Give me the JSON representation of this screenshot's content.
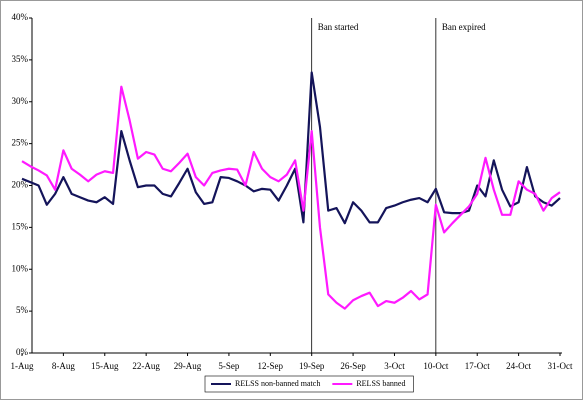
{
  "chart_data": {
    "type": "line",
    "categories": [
      "1-Aug",
      null,
      null,
      null,
      null,
      "8-Aug",
      null,
      null,
      null,
      null,
      "15-Aug",
      null,
      null,
      null,
      null,
      "22-Aug",
      null,
      null,
      null,
      null,
      "29-Aug",
      null,
      null,
      null,
      null,
      "5-Sep",
      null,
      null,
      null,
      null,
      "12-Sep",
      null,
      null,
      null,
      null,
      "19-Sep",
      null,
      null,
      null,
      null,
      "26-Sep",
      null,
      null,
      null,
      null,
      "3-Oct",
      null,
      null,
      null,
      null,
      "10-Oct",
      null,
      null,
      null,
      null,
      "17-Oct",
      null,
      null,
      null,
      null,
      "24-Oct",
      null,
      null,
      null,
      null,
      "31-Oct"
    ],
    "series": [
      {
        "name": "RELSS non-banned match",
        "color": "#14145a",
        "values": [
          20.8,
          20.4,
          20.0,
          17.7,
          19.0,
          21.0,
          19.0,
          18.6,
          18.2,
          18.0,
          18.6,
          17.8,
          26.5,
          23.0,
          19.8,
          20.0,
          20.0,
          19.0,
          18.7,
          20.3,
          22.0,
          19.2,
          17.8,
          18.0,
          21.0,
          20.9,
          20.5,
          20.0,
          19.3,
          19.6,
          19.5,
          18.2,
          20.0,
          22.0,
          15.6,
          33.5,
          27.0,
          17.0,
          17.3,
          15.5,
          18.0,
          17.0,
          15.6,
          15.6,
          17.3,
          17.6,
          18.0,
          18.3,
          18.5,
          18.0,
          19.6,
          16.8,
          16.7,
          16.7,
          17.0,
          20.0,
          18.7,
          23.0,
          19.5,
          17.5,
          18.0,
          22.2,
          18.7,
          18.0,
          17.6,
          18.5
        ]
      },
      {
        "name": "RELSS banned",
        "color": "#ff1aff",
        "values": [
          22.9,
          22.3,
          21.8,
          21.2,
          19.5,
          24.2,
          22.0,
          21.3,
          20.5,
          21.3,
          21.7,
          21.5,
          31.8,
          27.8,
          23.2,
          24.0,
          23.7,
          22.0,
          21.7,
          22.7,
          23.8,
          21.0,
          20.0,
          21.5,
          21.8,
          22.0,
          21.9,
          20.0,
          24.0,
          22.0,
          21.0,
          20.5,
          21.3,
          23.0,
          17.0,
          26.5,
          15.0,
          7.0,
          6.0,
          5.3,
          6.3,
          6.8,
          7.2,
          5.6,
          6.2,
          6.0,
          6.6,
          7.4,
          6.4,
          7.0,
          17.7,
          14.4,
          15.5,
          16.5,
          17.5,
          19.0,
          23.3,
          19.5,
          16.5,
          16.5,
          20.5,
          19.5,
          19.0,
          17.0,
          18.5,
          19.2
        ]
      }
    ],
    "ylim": [
      0,
      40
    ],
    "yticks": [
      {
        "value": 0,
        "label": "0%"
      },
      {
        "value": 5,
        "label": "5%"
      },
      {
        "value": 10,
        "label": "10%"
      },
      {
        "value": 15,
        "label": "15%"
      },
      {
        "value": 20,
        "label": "20%"
      },
      {
        "value": 25,
        "label": "25%"
      },
      {
        "value": 30,
        "label": "30%"
      },
      {
        "value": 35,
        "label": "35%"
      },
      {
        "value": 40,
        "label": "40%"
      }
    ],
    "annotations": [
      {
        "text": "Ban started",
        "x": "19-Sep"
      },
      {
        "text": "Ban expired",
        "x": "10-Oct"
      }
    ],
    "legend": "bottom"
  }
}
